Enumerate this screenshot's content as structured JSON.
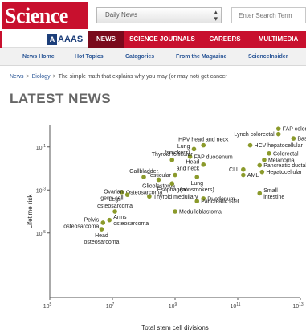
{
  "header": {
    "logo": "Science",
    "section_select": "Daily News",
    "search_placeholder": "Enter Search Term"
  },
  "nav": {
    "org": "AAAS",
    "items": [
      "NEWS",
      "SCIENCE JOURNALS",
      "CAREERS",
      "MULTIMEDIA"
    ]
  },
  "subnav": {
    "items": [
      "News Home",
      "Hot Topics",
      "Categories",
      "From the Magazine",
      "ScienceInsider"
    ]
  },
  "breadcrumb": {
    "items": [
      "News",
      "Biology"
    ],
    "current": "The simple math that explains why you may (or may not) get cancer"
  },
  "section_title": "LATEST NEWS",
  "colors": {
    "brand_red": "#c8102e",
    "nav_active": "#7a0a1c",
    "point": "#8b9a2b"
  },
  "chart_data": {
    "type": "scatter",
    "title": "",
    "xlabel": "Total stem cell divisions",
    "ylabel": "Lifetime risk",
    "x_scale": "log",
    "y_scale": "log",
    "xlim": [
      100000,
      10000000000000
    ],
    "ylim": [
      1e-08,
      1
    ],
    "x_ticks": [
      100000,
      10000000,
      1000000000,
      100000000000,
      10000000000000
    ],
    "x_tick_labels": [
      {
        "base": "10",
        "exp": "5"
      },
      {
        "base": "10",
        "exp": "7"
      },
      {
        "base": "10",
        "exp": "9"
      },
      {
        "base": "10",
        "exp": "11"
      },
      {
        "base": "10",
        "exp": "13"
      }
    ],
    "y_ticks": [
      0.1,
      0.001,
      1e-05
    ],
    "y_tick_labels": [
      {
        "base": "10",
        "exp": "-1"
      },
      {
        "base": "10",
        "exp": "-3"
      },
      {
        "base": "10",
        "exp": "-5"
      }
    ],
    "grid": false,
    "points": [
      {
        "label": "FAP colorectal",
        "x": 2000000000000,
        "y": 0.7,
        "label_side": "right"
      },
      {
        "label": "Lynch colorectal",
        "x": 2000000000000,
        "y": 0.4,
        "label_side": "left"
      },
      {
        "label": "Basal cell",
        "x": 6000000000000,
        "y": 0.25,
        "label_side": "right"
      },
      {
        "label": "HPV head and neck",
        "x": 8000000000,
        "y": 0.12,
        "label_side": "above"
      },
      {
        "label": "HCV hepatocellular",
        "x": 250000000000,
        "y": 0.12,
        "label_side": "right"
      },
      {
        "label": "Lung (smokers)",
        "x": 4000000000,
        "y": 0.08,
        "label_side": "left"
      },
      {
        "label": "Colorectal",
        "x": 1000000000000,
        "y": 0.05,
        "label_side": "right"
      },
      {
        "label": "FAP duodenum",
        "x": 3000000000,
        "y": 0.035,
        "label_side": "right"
      },
      {
        "label": "Thyroid follicular",
        "x": 800000000,
        "y": 0.025,
        "label_side": "above"
      },
      {
        "label": "Melanoma",
        "x": 700000000000,
        "y": 0.025,
        "label_side": "right"
      },
      {
        "label": "Head and neck",
        "x": 8000000000,
        "y": 0.015,
        "label_side": "left"
      },
      {
        "label": "Pancreatic ductal",
        "x": 500000000000,
        "y": 0.014,
        "label_side": "right"
      },
      {
        "label": "CLL",
        "x": 150000000000,
        "y": 0.009,
        "label_side": "left"
      },
      {
        "label": "Hepatocellular",
        "x": 600000000000,
        "y": 0.007,
        "label_side": "right"
      },
      {
        "label": "Testicular",
        "x": 1000000000,
        "y": 0.005,
        "label_side": "left"
      },
      {
        "label": "AML",
        "x": 150000000000,
        "y": 0.005,
        "label_side": "right"
      },
      {
        "label": "Gallbladder",
        "x": 100000000,
        "y": 0.004,
        "label_side": "above"
      },
      {
        "label": "Lung (nonsmokers)",
        "x": 5000000000,
        "y": 0.004,
        "label_side": "below"
      },
      {
        "label": "Glioblastoma",
        "x": 300000000,
        "y": 0.003,
        "label_side": "below"
      },
      {
        "label": "Esophageal",
        "x": 800000000,
        "y": 0.002,
        "label_side": "below"
      },
      {
        "label": "Osteosarcoma",
        "x": 20000000,
        "y": 0.0008,
        "label_side": "right"
      },
      {
        "label": "Ovarian germ cell",
        "x": 30000000,
        "y": 0.0006,
        "label_side": "left"
      },
      {
        "label": "Thyroid medullary",
        "x": 150000000,
        "y": 0.0005,
        "label_side": "right"
      },
      {
        "label": "Small intestine",
        "x": 500000000000,
        "y": 0.0007,
        "label_side": "right"
      },
      {
        "label": "Duodenum",
        "x": 8000000000,
        "y": 0.0004,
        "label_side": "right"
      },
      {
        "label": "Pancreatic islet",
        "x": 5000000000,
        "y": 0.0003,
        "label_side": "right"
      },
      {
        "label": "Legs osteosarcoma",
        "x": 12000000,
        "y": 0.0001,
        "label_side": "above"
      },
      {
        "label": "Medulloblastoma",
        "x": 1000000000,
        "y": 0.0001,
        "label_side": "right"
      },
      {
        "label": "Arms osteosarcoma",
        "x": 8000000,
        "y": 4e-05,
        "label_side": "right"
      },
      {
        "label": "Pelvis osteosarcoma",
        "x": 5000000,
        "y": 3e-05,
        "label_side": "left"
      },
      {
        "label": "Head osteosarcoma",
        "x": 4500000,
        "y": 1.5e-05,
        "label_side": "below"
      }
    ]
  }
}
